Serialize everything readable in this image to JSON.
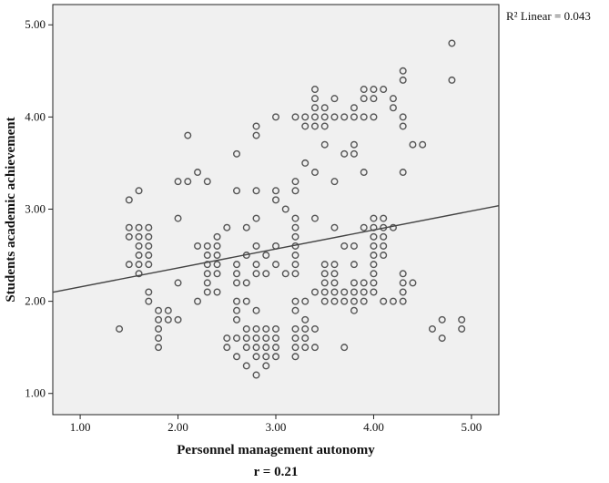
{
  "chart_data": {
    "type": "scatter",
    "title": "",
    "xlabel": "Personnel management autonomy",
    "ylabel": "Students academic achievement",
    "subtitle_below": "r = 0.21",
    "fit_annotation": "R² Linear = 0.043",
    "xlim": [
      0.72,
      5.28
    ],
    "ylim": [
      0.77,
      5.22
    ],
    "xticks": [
      "1.00",
      "2.00",
      "3.00",
      "4.00",
      "5.00"
    ],
    "yticks": [
      "1.00",
      "2.00",
      "3.00",
      "4.00",
      "5.00"
    ],
    "grid": false,
    "fit_line": {
      "intercept": 1.95,
      "slope": 0.206
    },
    "series": [
      {
        "name": "observations",
        "marker": "open-circle",
        "points_by_x": [
          {
            "x": 1.4,
            "ys": [
              1.7
            ]
          },
          {
            "x": 1.5,
            "ys": [
              3.1,
              2.8,
              2.7,
              2.4
            ]
          },
          {
            "x": 1.6,
            "ys": [
              3.2,
              2.8,
              2.7,
              2.6,
              2.5,
              2.4,
              2.3
            ]
          },
          {
            "x": 1.7,
            "ys": [
              2.8,
              2.7,
              2.6,
              2.5,
              2.4,
              2.1,
              2.0
            ]
          },
          {
            "x": 1.8,
            "ys": [
              1.9,
              1.8,
              1.7,
              1.6,
              1.5
            ]
          },
          {
            "x": 1.9,
            "ys": [
              1.9,
              1.8
            ]
          },
          {
            "x": 2.0,
            "ys": [
              3.3,
              2.9,
              2.2,
              1.8
            ]
          },
          {
            "x": 2.1,
            "ys": [
              3.8,
              3.3
            ]
          },
          {
            "x": 2.2,
            "ys": [
              3.4,
              2.6,
              2.0
            ]
          },
          {
            "x": 2.3,
            "ys": [
              3.3,
              2.6,
              2.5,
              2.4,
              2.3,
              2.2,
              2.1
            ]
          },
          {
            "x": 2.4,
            "ys": [
              2.7,
              2.6,
              2.5,
              2.4,
              2.3,
              2.1
            ]
          },
          {
            "x": 2.5,
            "ys": [
              2.8,
              1.6,
              1.5
            ]
          },
          {
            "x": 2.6,
            "ys": [
              3.6,
              3.2,
              2.4,
              2.3,
              2.2,
              2.0,
              1.9,
              1.8,
              1.6,
              1.4
            ]
          },
          {
            "x": 2.7,
            "ys": [
              2.8,
              2.5,
              2.2,
              2.0,
              1.7,
              1.6,
              1.5,
              1.3
            ]
          },
          {
            "x": 2.8,
            "ys": [
              3.9,
              3.8,
              3.2,
              2.9,
              2.6,
              2.4,
              2.3,
              1.9,
              1.7,
              1.6,
              1.5,
              1.4,
              1.2
            ]
          },
          {
            "x": 2.9,
            "ys": [
              2.5,
              2.3,
              1.7,
              1.6,
              1.5,
              1.4,
              1.3
            ]
          },
          {
            "x": 3.0,
            "ys": [
              4.0,
              3.2,
              3.1,
              2.6,
              2.4,
              1.7,
              1.6,
              1.5,
              1.4
            ]
          },
          {
            "x": 3.1,
            "ys": [
              3.0,
              2.3
            ]
          },
          {
            "x": 3.2,
            "ys": [
              4.0,
              3.3,
              3.2,
              2.9,
              2.8,
              2.7,
              2.6,
              2.5,
              2.4,
              2.3,
              2.0,
              1.9,
              1.7,
              1.6,
              1.5,
              1.4
            ]
          },
          {
            "x": 3.3,
            "ys": [
              4.0,
              3.9,
              3.5,
              2.0,
              1.8,
              1.7,
              1.6,
              1.5
            ]
          },
          {
            "x": 3.4,
            "ys": [
              4.3,
              4.2,
              4.1,
              4.0,
              3.9,
              3.4,
              2.9,
              2.1,
              1.7,
              1.5
            ]
          },
          {
            "x": 3.5,
            "ys": [
              4.1,
              4.0,
              3.9,
              3.7,
              2.4,
              2.3,
              2.2,
              2.1,
              2.0
            ]
          },
          {
            "x": 3.6,
            "ys": [
              4.2,
              4.0,
              3.3,
              2.8,
              2.4,
              2.3,
              2.2,
              2.1,
              2.0
            ]
          },
          {
            "x": 3.7,
            "ys": [
              4.0,
              3.6,
              2.6,
              2.1,
              2.0,
              1.5
            ]
          },
          {
            "x": 3.8,
            "ys": [
              4.1,
              4.0,
              3.7,
              3.6,
              2.6,
              2.4,
              2.2,
              2.1,
              2.0,
              1.9
            ]
          },
          {
            "x": 3.9,
            "ys": [
              4.3,
              4.2,
              4.0,
              3.4,
              2.8,
              2.2,
              2.1,
              2.0
            ]
          },
          {
            "x": 4.0,
            "ys": [
              4.3,
              4.2,
              4.0,
              2.9,
              2.8,
              2.7,
              2.6,
              2.5,
              2.4,
              2.3,
              2.2,
              2.1
            ]
          },
          {
            "x": 4.1,
            "ys": [
              4.3,
              2.9,
              2.8,
              2.7,
              2.6,
              2.5,
              2.0
            ]
          },
          {
            "x": 4.2,
            "ys": [
              4.2,
              4.1,
              2.8,
              2.0
            ]
          },
          {
            "x": 4.3,
            "ys": [
              4.5,
              4.4,
              4.0,
              3.9,
              3.4,
              2.3,
              2.2,
              2.1,
              2.0
            ]
          },
          {
            "x": 4.4,
            "ys": [
              3.7,
              2.2
            ]
          },
          {
            "x": 4.5,
            "ys": [
              3.7
            ]
          },
          {
            "x": 4.6,
            "ys": [
              1.7
            ]
          },
          {
            "x": 4.7,
            "ys": [
              1.8,
              1.6
            ]
          },
          {
            "x": 4.8,
            "ys": [
              4.8,
              4.4
            ]
          },
          {
            "x": 4.9,
            "ys": [
              1.8,
              1.7
            ]
          }
        ]
      }
    ],
    "colors": {
      "plot_bg": "#f0f0f0",
      "marker": "#555555",
      "line": "#444444"
    }
  }
}
